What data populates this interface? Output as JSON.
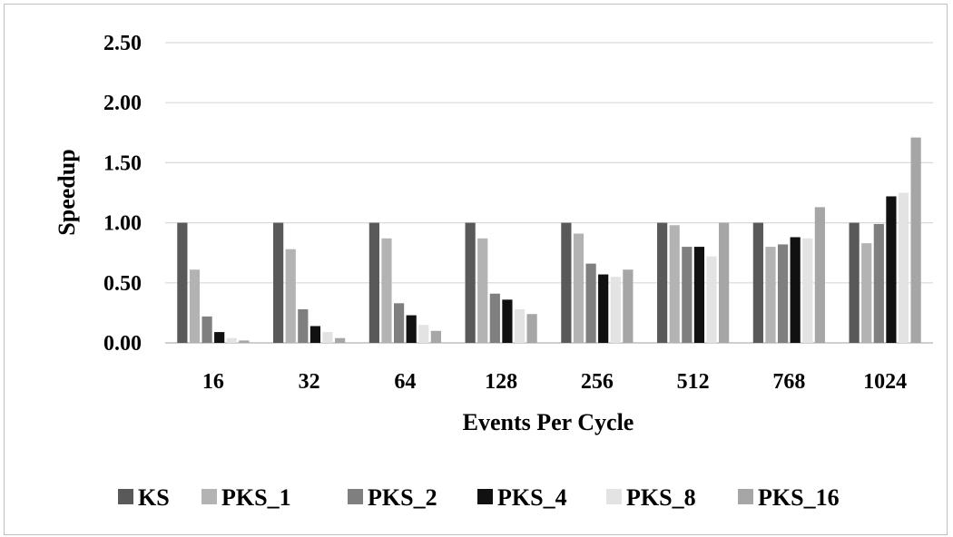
{
  "chart_data": {
    "type": "bar",
    "xlabel": "Events Per Cycle",
    "ylabel": "Speedup",
    "ylim": [
      0,
      2.5
    ],
    "yticks": [
      "0.00",
      "0.50",
      "1.00",
      "1.50",
      "2.00",
      "2.50"
    ],
    "grid": true,
    "legend_position": "bottom",
    "categories": [
      "16",
      "32",
      "64",
      "128",
      "256",
      "512",
      "768",
      "1024"
    ],
    "series": [
      {
        "name": "KS",
        "color": "#595959",
        "values": [
          1.0,
          1.0,
          1.0,
          1.0,
          1.0,
          1.0,
          1.0,
          1.0
        ]
      },
      {
        "name": "PKS_1",
        "color": "#b3b3b3",
        "values": [
          0.61,
          0.78,
          0.87,
          0.87,
          0.91,
          0.98,
          0.8,
          0.83
        ]
      },
      {
        "name": "PKS_2",
        "color": "#7f7f7f",
        "values": [
          0.22,
          0.28,
          0.33,
          0.41,
          0.66,
          0.8,
          0.82,
          0.99
        ]
      },
      {
        "name": "PKS_4",
        "color": "#111111",
        "values": [
          0.09,
          0.14,
          0.23,
          0.36,
          0.57,
          0.8,
          0.88,
          1.22
        ]
      },
      {
        "name": "PKS_8",
        "color": "#e3e3e3",
        "values": [
          0.04,
          0.09,
          0.15,
          0.28,
          0.55,
          0.72,
          0.87,
          1.25
        ]
      },
      {
        "name": "PKS_16",
        "color": "#a6a6a6",
        "values": [
          0.02,
          0.04,
          0.1,
          0.24,
          0.61,
          1.0,
          1.13,
          1.71
        ]
      }
    ]
  }
}
